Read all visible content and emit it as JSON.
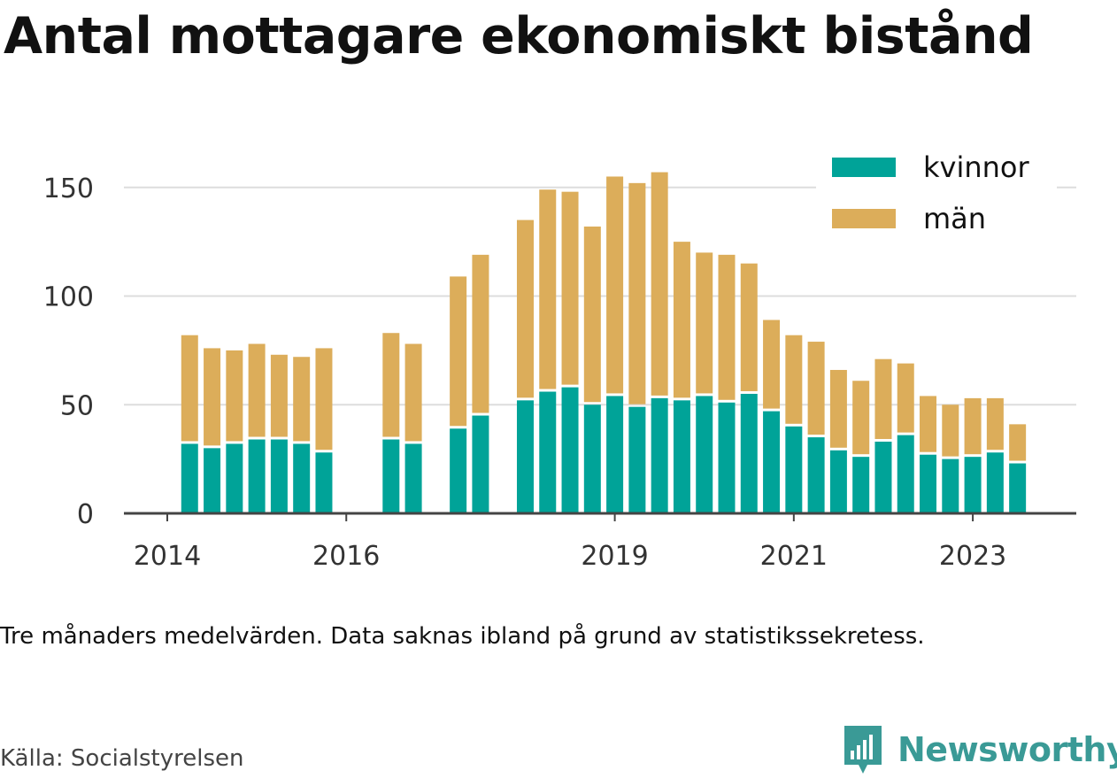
{
  "title": "Antal mottagare ekonomiskt bistånd",
  "note": "Tre månaders medelvärden. Data saknas ibland på grund av statistikssekretess.",
  "source": "Källa: Socialstyrelsen",
  "brand": {
    "name": "Newsworthy",
    "logo_icon": "newsworthy-logo-icon",
    "color": "#3a9a96"
  },
  "colors": {
    "kvinnor": "#00a398",
    "man": "#dcad5a",
    "grid": "#dddddd",
    "axis": "#444444"
  },
  "chart_data": {
    "type": "bar",
    "stacked": true,
    "x_unit": "quarter",
    "xticks": [
      "2014",
      "2016",
      "2019",
      "2021",
      "2023"
    ],
    "yticks": [
      "0",
      "50",
      "100",
      "150"
    ],
    "ylim": [
      0,
      160
    ],
    "grid": true,
    "legend_position": "top-right",
    "categories": [
      "2014-Q2",
      "2014-Q3",
      "2014-Q4",
      "2015-Q1",
      "2015-Q2",
      "2015-Q3",
      "2015-Q4",
      "2016-Q1",
      "2016-Q2",
      "2016-Q3",
      "2016-Q4",
      "2017-Q1",
      "2017-Q2",
      "2017-Q3",
      "2017-Q4",
      "2018-Q1",
      "2018-Q2",
      "2018-Q3",
      "2018-Q4",
      "2019-Q1",
      "2019-Q2",
      "2019-Q3",
      "2019-Q4",
      "2020-Q1",
      "2020-Q2",
      "2020-Q3",
      "2020-Q4",
      "2021-Q1",
      "2021-Q2",
      "2021-Q3",
      "2021-Q4",
      "2022-Q1",
      "2022-Q2",
      "2022-Q3",
      "2022-Q4",
      "2023-Q1",
      "2023-Q2",
      "2023-Q3"
    ],
    "series": [
      {
        "name": "kvinnor",
        "values": [
          32,
          30,
          32,
          34,
          34,
          32,
          28,
          null,
          null,
          34,
          32,
          null,
          39,
          45,
          null,
          52,
          56,
          58,
          50,
          54,
          49,
          53,
          52,
          54,
          51,
          55,
          47,
          40,
          35,
          29,
          26,
          33,
          36,
          27,
          25,
          26,
          28,
          23
        ]
      },
      {
        "name": "män",
        "values": [
          50,
          46,
          43,
          44,
          39,
          40,
          48,
          null,
          null,
          49,
          46,
          null,
          70,
          74,
          null,
          83,
          93,
          90,
          82,
          101,
          103,
          104,
          73,
          66,
          68,
          60,
          42,
          42,
          44,
          37,
          35,
          38,
          33,
          27,
          25,
          27,
          25,
          18
        ]
      }
    ]
  }
}
